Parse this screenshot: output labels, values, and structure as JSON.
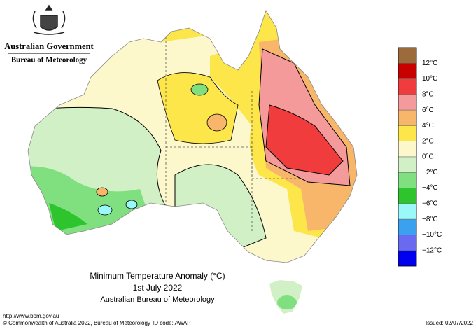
{
  "header": {
    "government": "Australian Government",
    "agency": "Bureau of Meteorology"
  },
  "map": {
    "title": "Minimum Temperature Anomaly (°C)",
    "date": "1st July 2022",
    "source": "Australian Bureau of Meteorology"
  },
  "legend": {
    "colors": [
      "#9c6b3c",
      "#c80000",
      "#f03c3c",
      "#f59a9a",
      "#f7b66a",
      "#fde64a",
      "#fdf8cc",
      "#d2f0c6",
      "#80e080",
      "#2ec42e",
      "#9af8f8",
      "#3aa0f0",
      "#6a6af0",
      "#0000f0"
    ],
    "labels": [
      "12°C",
      "10°C",
      "8°C",
      "6°C",
      "4°C",
      "2°C",
      "0°C",
      "−2°C",
      "−4°C",
      "−6°C",
      "−8°C",
      "−10°C",
      "−12°C"
    ]
  },
  "footer": {
    "url": "http://www.bom.gov.au",
    "copyright": "© Commonwealth of Australia 2022, Bureau of Meteorology",
    "id_code": "ID code: AWAP",
    "issued": "Issued: 02/07/2022"
  }
}
